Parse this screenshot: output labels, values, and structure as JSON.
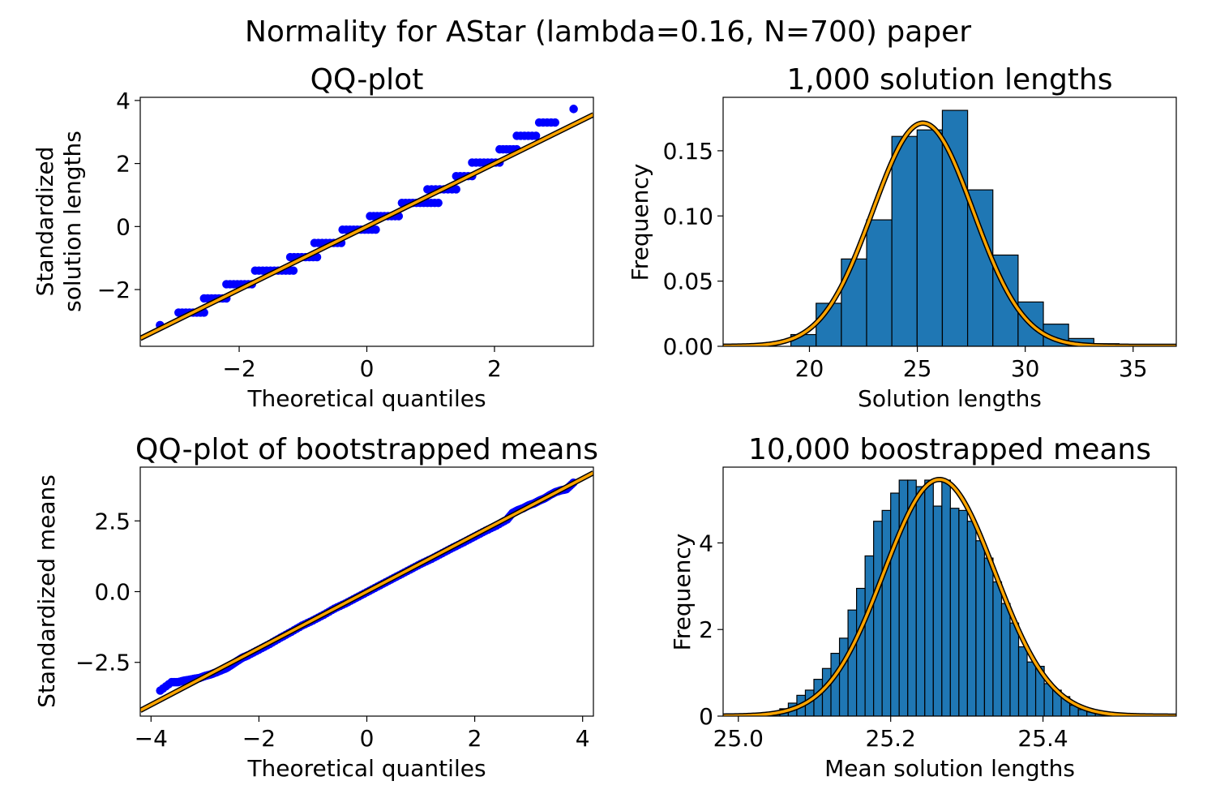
{
  "figure": {
    "title": "Normality for AStar (lambda=0.16, N=700) paper",
    "colors": {
      "points": "#0000ff",
      "line_outer": "#000000",
      "line_inner": "#ffa500",
      "bars": "#1f77b4",
      "bar_edge": "#000000"
    }
  },
  "chart_data": [
    {
      "type": "scatter",
      "title": "QQ-plot",
      "xlabel": "Theoretical quantiles",
      "ylabel_lines": [
        "Standardized",
        "solution lengths"
      ],
      "xlim": [
        -3.55,
        3.55
      ],
      "ylim": [
        -3.8,
        4.1
      ],
      "xticks": [
        -2,
        0,
        2
      ],
      "xtick_labels": [
        "−2",
        "0",
        "2"
      ],
      "yticks": [
        -2,
        0,
        2,
        4
      ],
      "ytick_labels": [
        "−2",
        "0",
        "2",
        "4"
      ],
      "reference_line": {
        "slope": 1,
        "intercept": 0
      },
      "levels": [
        {
          "y": -3.13,
          "x": [
            -3.24,
            -3.24
          ]
        },
        {
          "y": -2.73,
          "x": [
            -2.95,
            -2.55
          ]
        },
        {
          "y": -2.28,
          "x": [
            -2.55,
            -2.2
          ]
        },
        {
          "y": -1.83,
          "x": [
            -2.2,
            -1.8
          ]
        },
        {
          "y": -1.4,
          "x": [
            -1.75,
            -1.15
          ]
        },
        {
          "y": -0.97,
          "x": [
            -1.2,
            -0.78
          ]
        },
        {
          "y": -0.52,
          "x": [
            -0.82,
            -0.4
          ]
        },
        {
          "y": -0.1,
          "x": [
            -0.38,
            0.14
          ]
        },
        {
          "y": 0.33,
          "x": [
            0.05,
            0.5
          ]
        },
        {
          "y": 0.75,
          "x": [
            0.55,
            1.12
          ]
        },
        {
          "y": 1.18,
          "x": [
            0.95,
            1.4
          ]
        },
        {
          "y": 1.6,
          "x": [
            1.4,
            1.65
          ]
        },
        {
          "y": 2.03,
          "x": [
            1.65,
            2.08
          ]
        },
        {
          "y": 2.45,
          "x": [
            2.08,
            2.35
          ]
        },
        {
          "y": 2.88,
          "x": [
            2.35,
            2.65
          ]
        },
        {
          "y": 3.3,
          "x": [
            2.7,
            2.95
          ]
        },
        {
          "y": 3.73,
          "x": [
            3.24,
            3.24
          ]
        }
      ]
    },
    {
      "type": "bar",
      "title": "1,000 solution lengths",
      "xlabel": "Solution lengths",
      "ylabel": "Frequency",
      "xlim": [
        16,
        37
      ],
      "ylim": [
        0,
        0.191
      ],
      "xticks": [
        20,
        25,
        30,
        35
      ],
      "xtick_labels": [
        "20",
        "25",
        "30",
        "35"
      ],
      "yticks": [
        0,
        0.05,
        0.1,
        0.15
      ],
      "ytick_labels": [
        "0.00",
        "0.05",
        "0.10",
        "0.15"
      ],
      "bin_edges": [
        19.14,
        20.31,
        21.48,
        22.65,
        23.82,
        24.99,
        26.16,
        27.33,
        28.5,
        29.67,
        30.84,
        32.01,
        33.18,
        34.35,
        35.52
      ],
      "values": [
        0.009,
        0.033,
        0.067,
        0.097,
        0.161,
        0.166,
        0.181,
        0.12,
        0.07,
        0.034,
        0.017,
        0.006,
        0.002,
        0.001
      ],
      "normal_fit": {
        "mean": 25.26,
        "std": 2.33
      }
    },
    {
      "type": "scatter",
      "title": "QQ-plot of bootstrapped means",
      "xlabel": "Theoretical quantiles",
      "ylabel": "Standardized means",
      "xlim": [
        -4.2,
        4.2
      ],
      "ylim": [
        -4.4,
        4.4
      ],
      "xticks": [
        -4,
        -2,
        0,
        2,
        4
      ],
      "xtick_labels": [
        "−4",
        "−2",
        "0",
        "2",
        "4"
      ],
      "yticks": [
        -2.5,
        0,
        2.5
      ],
      "ytick_labels": [
        "−2.5",
        "0.0",
        "2.5"
      ],
      "reference_line": {
        "slope": 1,
        "intercept": 0
      },
      "points": [
        [
          -3.83,
          -3.5
        ],
        [
          -3.62,
          -3.2
        ],
        [
          -3.5,
          -3.2
        ],
        [
          -3.4,
          -3.15
        ],
        [
          -3.3,
          -3.12
        ],
        [
          -3.2,
          -3.08
        ],
        [
          -3.1,
          -3.05
        ],
        [
          -3.0,
          -2.98
        ],
        [
          -2.9,
          -2.93
        ],
        [
          -2.8,
          -2.86
        ],
        [
          -2.7,
          -2.78
        ],
        [
          -2.6,
          -2.7
        ],
        [
          -2.5,
          -2.58
        ],
        [
          -2.4,
          -2.45
        ],
        [
          -2.3,
          -2.33
        ],
        [
          -2.2,
          -2.25
        ],
        [
          -2.0,
          -2.05
        ],
        [
          -1.8,
          -1.85
        ],
        [
          -1.6,
          -1.63
        ],
        [
          -1.4,
          -1.42
        ],
        [
          -1.2,
          -1.2
        ],
        [
          -1.0,
          -1.02
        ],
        [
          -0.8,
          -0.82
        ],
        [
          -0.6,
          -0.6
        ],
        [
          -0.4,
          -0.42
        ],
        [
          -0.2,
          -0.22
        ],
        [
          0.0,
          -0.02
        ],
        [
          0.2,
          0.18
        ],
        [
          0.4,
          0.38
        ],
        [
          0.6,
          0.58
        ],
        [
          0.8,
          0.78
        ],
        [
          1.0,
          0.98
        ],
        [
          1.2,
          1.16
        ],
        [
          1.4,
          1.36
        ],
        [
          1.6,
          1.56
        ],
        [
          1.8,
          1.75
        ],
        [
          2.0,
          1.95
        ],
        [
          2.2,
          2.15
        ],
        [
          2.4,
          2.33
        ],
        [
          2.6,
          2.55
        ],
        [
          2.7,
          2.78
        ],
        [
          2.8,
          2.88
        ],
        [
          2.9,
          2.95
        ],
        [
          3.0,
          3.05
        ],
        [
          3.1,
          3.12
        ],
        [
          3.2,
          3.22
        ],
        [
          3.3,
          3.3
        ],
        [
          3.4,
          3.42
        ],
        [
          3.5,
          3.52
        ],
        [
          3.6,
          3.58
        ],
        [
          3.7,
          3.62
        ],
        [
          3.83,
          3.85
        ]
      ]
    },
    {
      "type": "bar",
      "title": "10,000 boostrapped means",
      "xlabel": "Mean solution lengths",
      "ylabel": "Frequency",
      "xlim": [
        24.98,
        25.575
      ],
      "ylim": [
        0,
        5.75
      ],
      "xticks": [
        25.0,
        25.2,
        25.4
      ],
      "xtick_labels": [
        "25.0",
        "25.2",
        "25.4"
      ],
      "yticks": [
        0,
        2,
        4
      ],
      "ytick_labels": [
        "0",
        "2",
        "4"
      ],
      "bin_edges": [
        25.032,
        25.0432,
        25.0544,
        25.0656,
        25.0768,
        25.088,
        25.0992,
        25.1104,
        25.1216,
        25.1328,
        25.144,
        25.1552,
        25.1664,
        25.1776,
        25.1888,
        25.2,
        25.2112,
        25.2224,
        25.2336,
        25.2448,
        25.256,
        25.2672,
        25.2784,
        25.2896,
        25.3008,
        25.312,
        25.3232,
        25.3344,
        25.3456,
        25.3568,
        25.368,
        25.3792,
        25.3904,
        25.4016,
        25.4128,
        25.424,
        25.4352,
        25.4464,
        25.4576,
        25.4688,
        25.48,
        25.4912,
        25.5024
      ],
      "values": [
        0.05,
        0.09,
        0.17,
        0.3,
        0.48,
        0.6,
        0.85,
        1.1,
        1.45,
        1.8,
        2.45,
        2.95,
        3.7,
        4.5,
        4.75,
        5.15,
        5.45,
        5.45,
        5.3,
        5.45,
        4.85,
        5.45,
        4.8,
        4.75,
        4.5,
        4.05,
        3.65,
        3.1,
        2.6,
        2.15,
        1.6,
        1.25,
        1.15,
        0.75,
        0.6,
        0.45,
        0.25,
        0.15,
        0.1,
        0.05,
        0.03,
        0.02
      ],
      "normal_fit": {
        "mean": 25.264,
        "std": 0.073
      }
    }
  ]
}
